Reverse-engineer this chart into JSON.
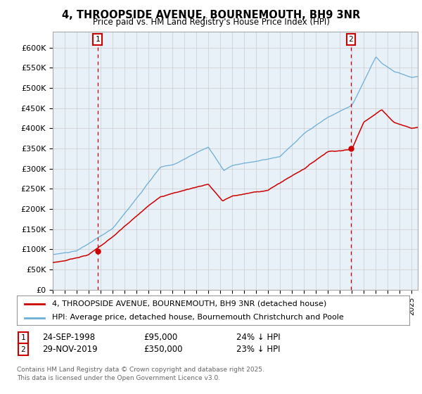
{
  "title": "4, THROOPSIDE AVENUE, BOURNEMOUTH, BH9 3NR",
  "subtitle": "Price paid vs. HM Land Registry's House Price Index (HPI)",
  "ylabel_ticks": [
    "£0",
    "£50K",
    "£100K",
    "£150K",
    "£200K",
    "£250K",
    "£300K",
    "£350K",
    "£400K",
    "£450K",
    "£500K",
    "£550K",
    "£600K"
  ],
  "ytick_values": [
    0,
    50000,
    100000,
    150000,
    200000,
    250000,
    300000,
    350000,
    400000,
    450000,
    500000,
    550000,
    600000
  ],
  "sale1_date": "24-SEP-1998",
  "sale1_price": 95000,
  "sale1_label": "24% ↓ HPI",
  "sale1_x": 1998.74,
  "sale2_date": "29-NOV-2019",
  "sale2_price": 350000,
  "sale2_label": "23% ↓ HPI",
  "sale2_x": 2019.91,
  "legend1": "4, THROOPSIDE AVENUE, BOURNEMOUTH, BH9 3NR (detached house)",
  "legend2": "HPI: Average price, detached house, Bournemouth Christchurch and Poole",
  "footnote1": "Contains HM Land Registry data © Crown copyright and database right 2025.",
  "footnote2": "This data is licensed under the Open Government Licence v3.0.",
  "hpi_color": "#6baed6",
  "price_color": "#cc0000",
  "dashed_color": "#cc0000",
  "background_color": "#ffffff",
  "grid_color": "#cccccc",
  "plot_bg": "#e8f0f8",
  "xmin": 1995,
  "xmax": 2025.5,
  "ymin": 0,
  "ymax": 640000
}
